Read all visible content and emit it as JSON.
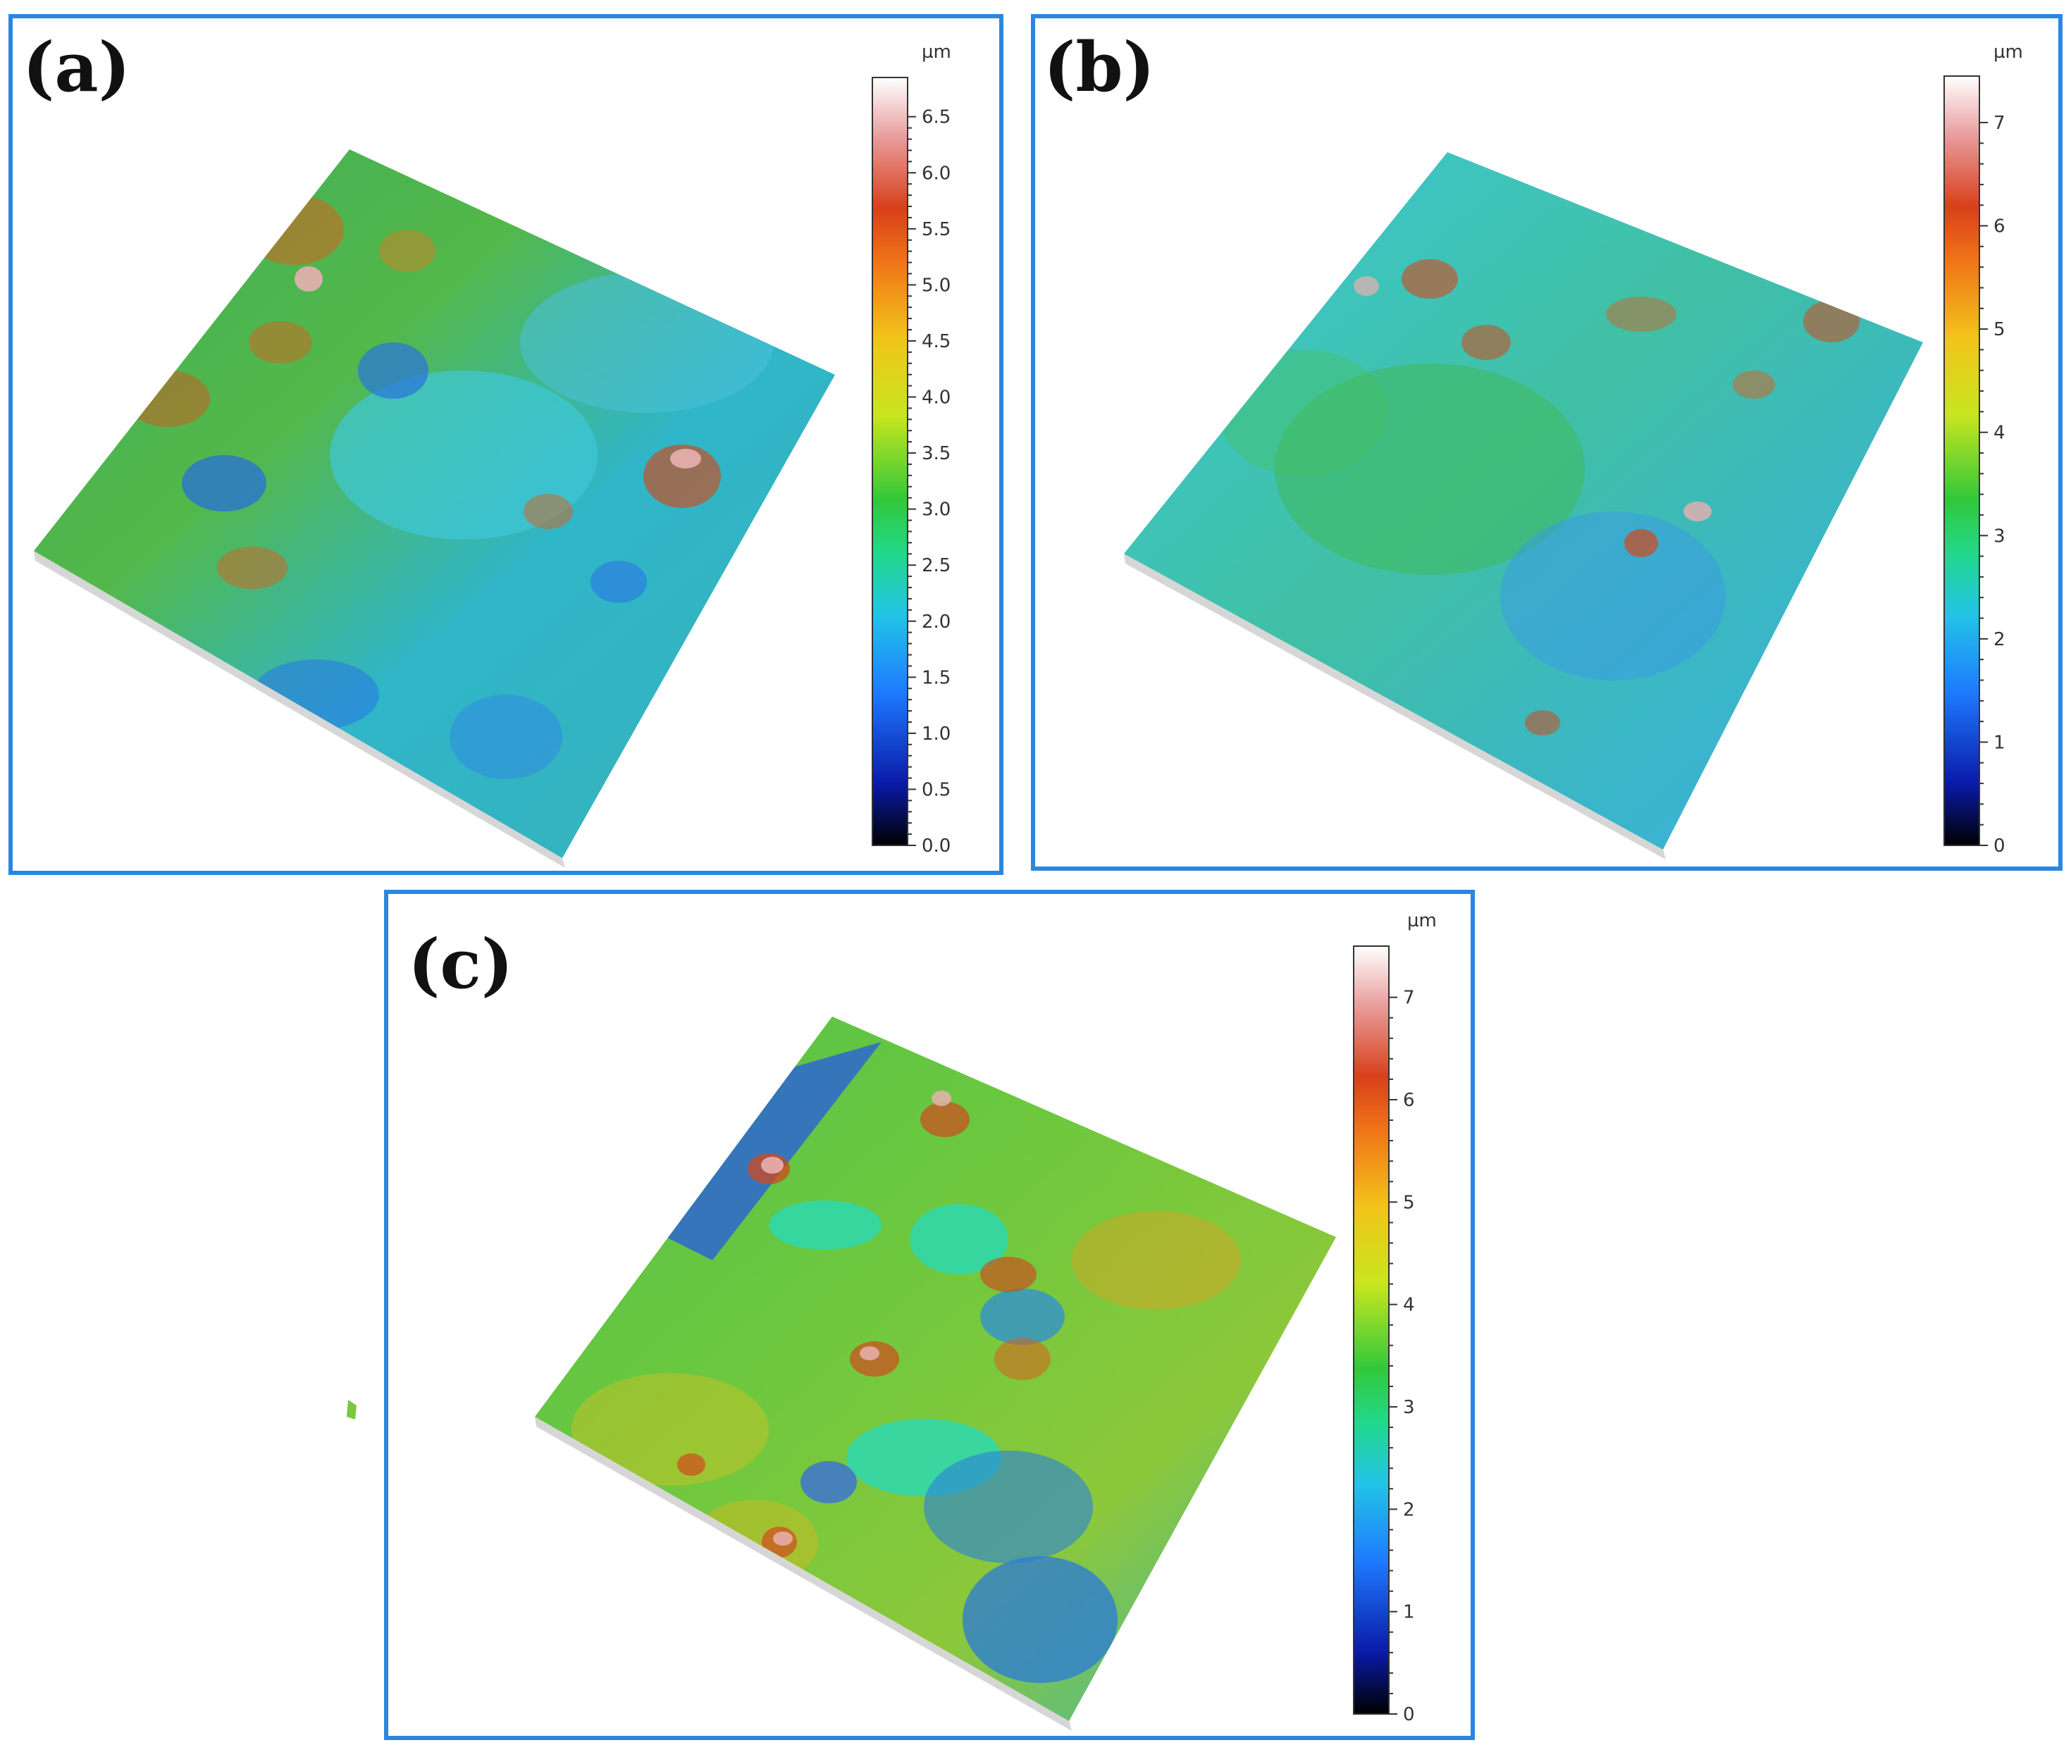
{
  "colors": {
    "border": "#2b86e0",
    "scale_stops": [
      "#000000",
      "#0a1aa8",
      "#1e7bff",
      "#22c4e6",
      "#22d88a",
      "#32c83a",
      "#c8e61e",
      "#f2c41a",
      "#f07418",
      "#d8401a",
      "#e89a9a",
      "#ffffff"
    ]
  },
  "panels": [
    {
      "label": "(a)",
      "colorbar": {
        "unit": "µm",
        "max": 6.85,
        "ticks": [
          "0.0",
          "0.5",
          "1.0",
          "1.5",
          "2.0",
          "2.5",
          "3.0",
          "3.5",
          "4.0",
          "4.5",
          "5.0",
          "5.5",
          "6.0",
          "6.5"
        ],
        "tick_values": [
          0,
          0.5,
          1,
          1.5,
          2,
          2.5,
          3,
          3.5,
          4,
          4.5,
          5,
          5.5,
          6,
          6.5
        ]
      }
    },
    {
      "label": "(b)",
      "colorbar": {
        "unit": "µm",
        "max": 7.45,
        "ticks": [
          "0",
          "1",
          "2",
          "3",
          "4",
          "5",
          "6",
          "7"
        ],
        "tick_values": [
          0,
          1,
          2,
          3,
          4,
          5,
          6,
          7
        ]
      }
    },
    {
      "label": "(c)",
      "colorbar": {
        "unit": "µm",
        "max": 7.5,
        "ticks": [
          "0",
          "1",
          "2",
          "3",
          "4",
          "5",
          "6",
          "7"
        ],
        "tick_values": [
          0,
          1,
          2,
          3,
          4,
          5,
          6,
          7
        ]
      }
    }
  ]
}
